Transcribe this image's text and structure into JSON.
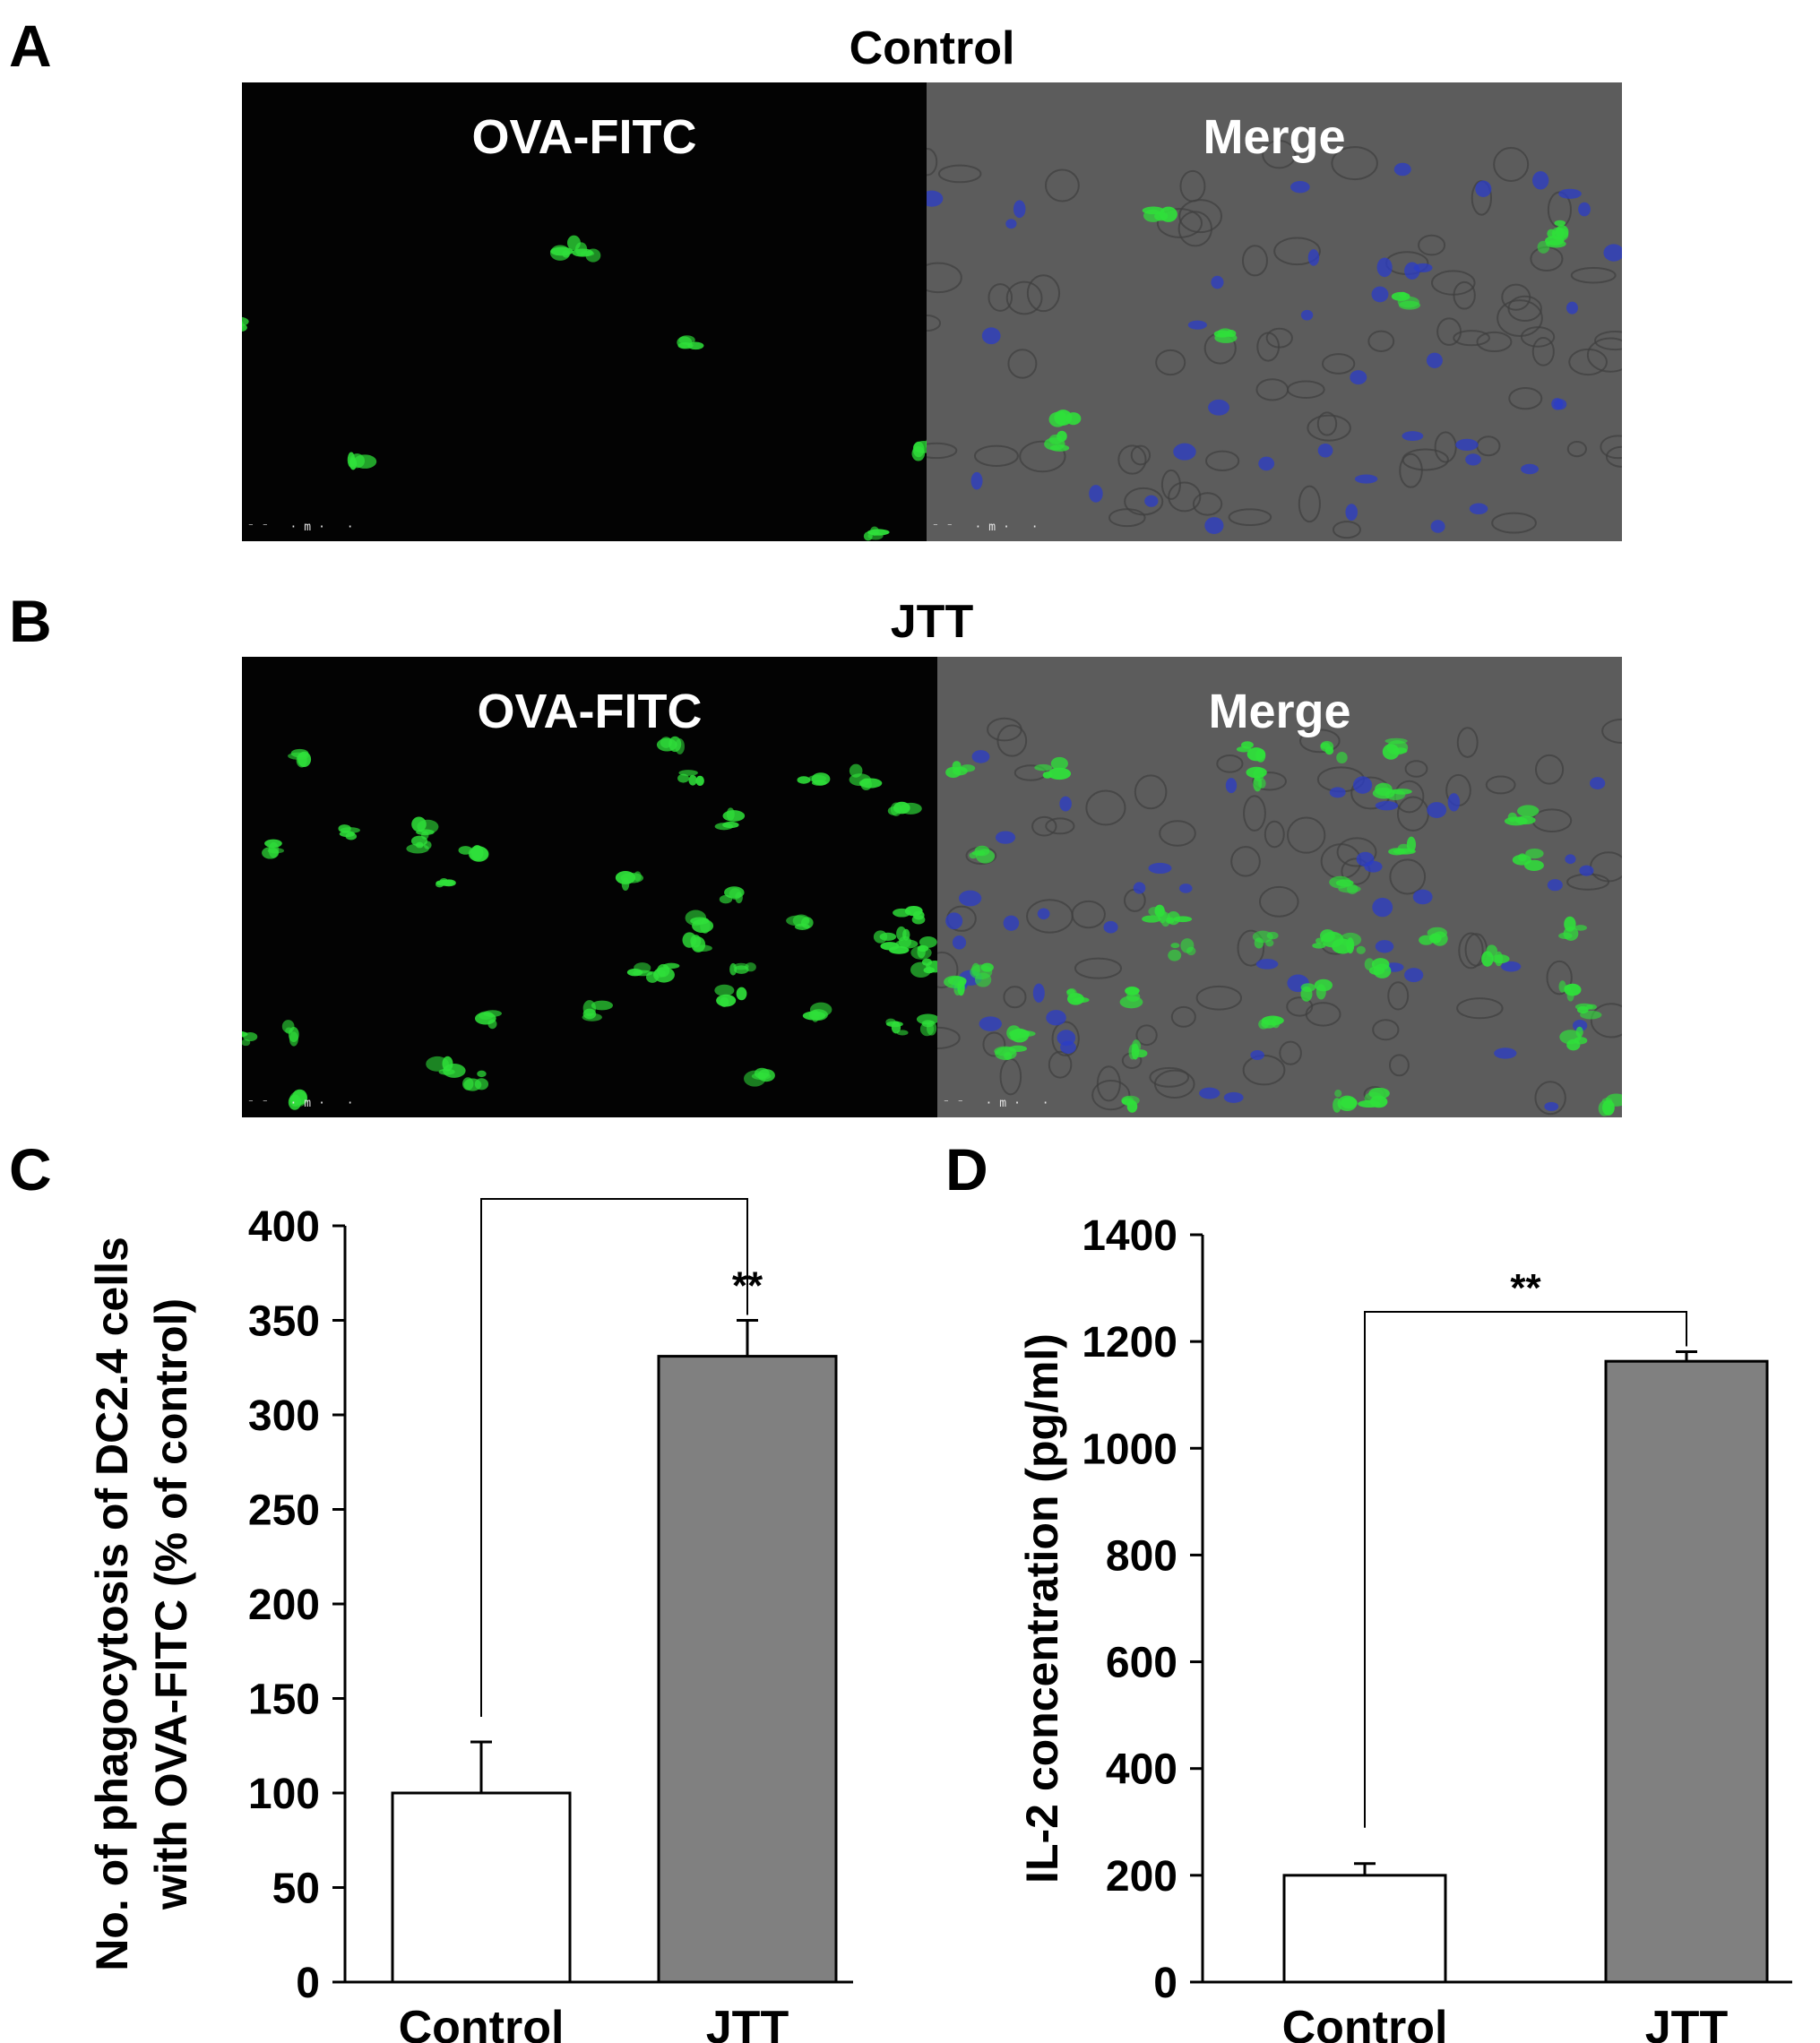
{
  "panels": {
    "A": {
      "letter": "A",
      "title": "Control",
      "left_label": "OVA-FITC",
      "right_label": "Merge"
    },
    "B": {
      "letter": "B",
      "title": "JTT",
      "left_label": "OVA-FITC",
      "right_label": "Merge"
    },
    "C": {
      "letter": "C"
    },
    "D": {
      "letter": "D"
    }
  },
  "scalebar_text": "⁻⁻ ·m· ·",
  "colors": {
    "control_bar": "#ffffff",
    "jtt_bar": "#808080",
    "fitc_green": "#2fe03a",
    "dapi_blue": "#2b3cc8"
  },
  "chart_data": [
    {
      "type": "bar",
      "panel": "C",
      "categories": [
        "Control",
        "JTT"
      ],
      "values": [
        100,
        331
      ],
      "errors": [
        27,
        19
      ],
      "ylabel_line1": "No. of phagocytosis of DC2.4 cells",
      "ylabel_line2": "with OVA-FITC (% of control)",
      "xlabel": "",
      "ylim": [
        0,
        400
      ],
      "yticks": [
        0,
        50,
        100,
        150,
        200,
        250,
        300,
        350,
        400
      ],
      "significance": "**"
    },
    {
      "type": "bar",
      "panel": "D",
      "categories": [
        "Control",
        "JTT"
      ],
      "values": [
        200,
        1163
      ],
      "errors": [
        22,
        18
      ],
      "ylabel": "IL-2 concentration (pg/ml)",
      "xlabel": "",
      "ylim": [
        0,
        1400
      ],
      "yticks": [
        0,
        200,
        400,
        600,
        800,
        1000,
        1200,
        1400
      ],
      "significance": "**"
    }
  ]
}
